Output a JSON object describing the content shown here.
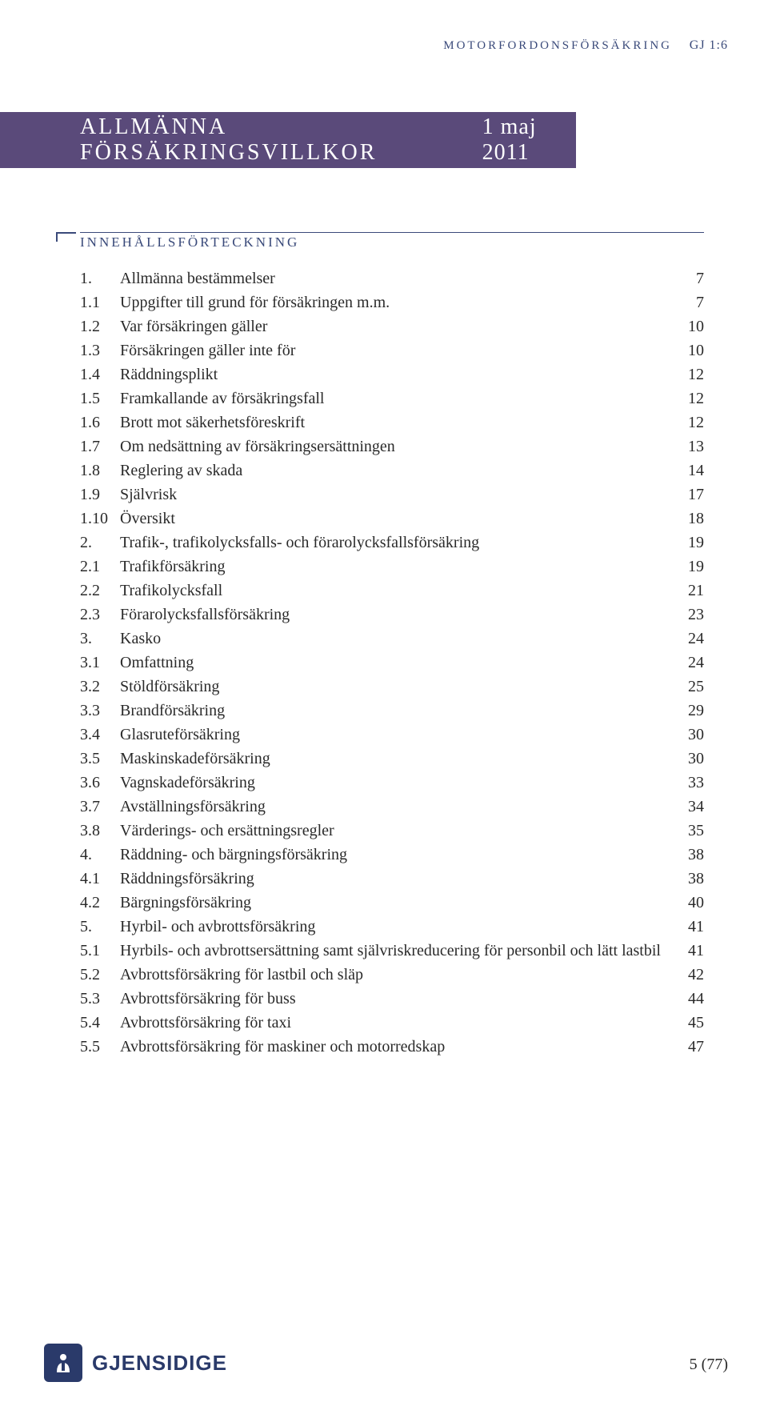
{
  "header": {
    "category": "MOTORFORDONSFÖRSÄKRING",
    "code": "GJ 1:6"
  },
  "banner": {
    "title": "ALLMÄNNA FÖRSÄKRINGSVILLKOR",
    "date": "1 maj 2011"
  },
  "section_title": "INNEHÅLLSFÖRTECKNING",
  "toc": [
    {
      "num": "1.",
      "label": "Allmänna bestämmelser",
      "page": "7"
    },
    {
      "num": "1.1",
      "label": "Uppgifter till grund för försäkringen m.m.",
      "page": "7"
    },
    {
      "num": "1.2",
      "label": "Var försäkringen gäller",
      "page": "10"
    },
    {
      "num": "1.3",
      "label": "Försäkringen gäller inte för",
      "page": "10"
    },
    {
      "num": "1.4",
      "label": "Räddningsplikt",
      "page": "12"
    },
    {
      "num": "1.5",
      "label": "Framkallande av försäkringsfall",
      "page": "12"
    },
    {
      "num": "1.6",
      "label": "Brott mot säkerhetsföreskrift",
      "page": "12"
    },
    {
      "num": "1.7",
      "label": "Om nedsättning av försäkringsersättningen",
      "page": "13"
    },
    {
      "num": "1.8",
      "label": "Reglering av skada",
      "page": "14"
    },
    {
      "num": "1.9",
      "label": "Självrisk",
      "page": "17"
    },
    {
      "num": "1.10",
      "label": "Översikt",
      "page": "18"
    },
    {
      "num": "2.",
      "label": "Trafik-, trafikolycksfalls- och förarolycksfallsförsäkring",
      "page": "19"
    },
    {
      "num": "2.1",
      "label": "Trafikförsäkring",
      "page": "19"
    },
    {
      "num": "2.2",
      "label": "Trafikolycksfall",
      "page": "21"
    },
    {
      "num": "2.3",
      "label": "Förarolycksfallsförsäkring",
      "page": "23"
    },
    {
      "num": "3.",
      "label": "Kasko",
      "page": "24"
    },
    {
      "num": "3.1",
      "label": "Omfattning",
      "page": "24"
    },
    {
      "num": "3.2",
      "label": "Stöldförsäkring",
      "page": "25"
    },
    {
      "num": "3.3",
      "label": "Brandförsäkring",
      "page": "29"
    },
    {
      "num": "3.4",
      "label": "Glasruteförsäkring",
      "page": "30"
    },
    {
      "num": "3.5",
      "label": "Maskinskadeförsäkring",
      "page": "30"
    },
    {
      "num": "3.6",
      "label": "Vagnskadeförsäkring",
      "page": "33"
    },
    {
      "num": "3.7",
      "label": "Avställningsförsäkring",
      "page": "34"
    },
    {
      "num": "3.8",
      "label": "Värderings- och ersättningsregler",
      "page": "35"
    },
    {
      "num": "4.",
      "label": "Räddning- och bärgningsförsäkring",
      "page": "38"
    },
    {
      "num": "4.1",
      "label": "Räddningsförsäkring",
      "page": "38"
    },
    {
      "num": "4.2",
      "label": "Bärgningsförsäkring",
      "page": "40"
    },
    {
      "num": "5.",
      "label": "Hyrbil- och avbrottsförsäkring",
      "page": "41"
    },
    {
      "num": "5.1",
      "label": "Hyrbils- och avbrottsersättning samt självriskreducering för personbil och lätt lastbil",
      "page": "41"
    },
    {
      "num": "5.2",
      "label": "Avbrottsförsäkring för lastbil och släp",
      "page": "42"
    },
    {
      "num": "5.3",
      "label": "Avbrottsförsäkring för buss",
      "page": "44"
    },
    {
      "num": "5.4",
      "label": "Avbrottsförsäkring för taxi",
      "page": "45"
    },
    {
      "num": "5.5",
      "label": "Avbrottsförsäkring för maskiner och motorredskap",
      "page": "47"
    }
  ],
  "footer": {
    "logo_text": "GJENSIDIGE",
    "page_current": "5",
    "page_total": "(77)"
  },
  "colors": {
    "banner_bg": "#5a4a7a",
    "accent": "#3a4a7a",
    "logo": "#2a3a6a",
    "text": "#2a2a2a",
    "background": "#ffffff"
  }
}
